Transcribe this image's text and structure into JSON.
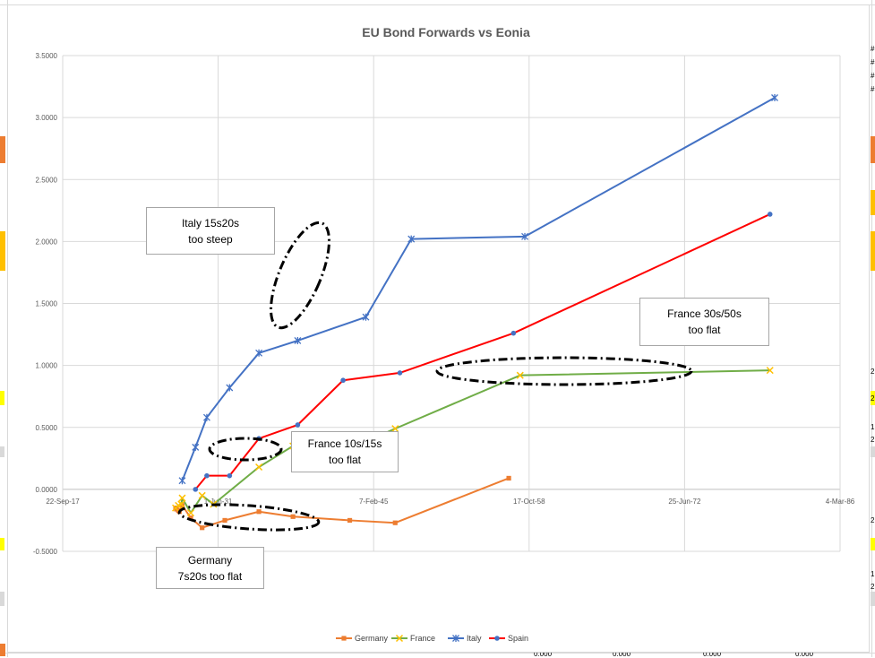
{
  "chart_data": {
    "type": "line",
    "title": "EU Bond Forwards vs Eonia",
    "x_axis": {
      "min": "1917-09-22",
      "max": "1986-03-04",
      "tick_labels": [
        "22-Sep-17",
        "1-Jun-31",
        "7-Feb-45",
        "17-Oct-58",
        "25-Jun-72",
        "4-Mar-86"
      ]
    },
    "y_axis": {
      "min": -0.5,
      "max": 3.5,
      "step": 0.5,
      "tick_labels": [
        "3.5000",
        "3.0000",
        "2.5000",
        "2.0000",
        "1.5000",
        "1.0000",
        "0.5000",
        "0.0000",
        "-0.5000"
      ]
    },
    "gridlines": true,
    "legend_position": "bottom",
    "series": [
      {
        "name": "Germany",
        "color": "#ED7D31",
        "marker": "square",
        "points": [
          [
            "1927-09-01",
            -0.15
          ],
          [
            "1927-10-01",
            -0.16
          ],
          [
            "1927-12-01",
            -0.17
          ],
          [
            "1928-01-01",
            -0.18
          ],
          [
            "1928-04-01",
            -0.13
          ],
          [
            "1929-01-01",
            -0.23
          ],
          [
            "1930-01-01",
            -0.31
          ],
          [
            "1932-01-01",
            -0.25
          ],
          [
            "1935-01-01",
            -0.18
          ],
          [
            "1938-01-01",
            -0.22
          ],
          [
            "1943-01-01",
            -0.25
          ],
          [
            "1947-01-01",
            -0.27
          ],
          [
            "1957-01-01",
            0.09
          ]
        ]
      },
      {
        "name": "France",
        "color": "#70AD47",
        "marker": "x",
        "points": [
          [
            "1927-09-01",
            -0.15
          ],
          [
            "1927-12-01",
            -0.13
          ],
          [
            "1928-03-01",
            -0.12
          ],
          [
            "1928-04-01",
            -0.07
          ],
          [
            "1929-01-01",
            -0.19
          ],
          [
            "1930-01-01",
            -0.05
          ],
          [
            "1931-01-01",
            -0.12
          ],
          [
            "1935-01-01",
            0.18
          ],
          [
            "1938-01-01",
            0.35
          ],
          [
            "1943-01-01",
            0.33
          ],
          [
            "1947-01-01",
            0.49
          ],
          [
            "1958-01-01",
            0.92
          ],
          [
            "1980-01-01",
            0.96
          ]
        ]
      },
      {
        "name": "Italy",
        "color": "#4472C4",
        "marker": "star",
        "points": [
          [
            "1928-04-01",
            0.07
          ],
          [
            "1929-06-01",
            0.34
          ],
          [
            "1930-06-01",
            0.58
          ],
          [
            "1932-06-01",
            0.82
          ],
          [
            "1935-01-01",
            1.1
          ],
          [
            "1938-06-01",
            1.2
          ],
          [
            "1944-06-01",
            1.39
          ],
          [
            "1948-06-01",
            2.02
          ],
          [
            "1958-06-01",
            2.04
          ],
          [
            "1980-06-01",
            3.16
          ]
        ]
      },
      {
        "name": "Spain",
        "color": "#FF0000",
        "marker": "circle",
        "points": [
          [
            "1929-06-01",
            0.0
          ],
          [
            "1930-06-01",
            0.11
          ],
          [
            "1932-06-01",
            0.11
          ],
          [
            "1935-01-01",
            0.41
          ],
          [
            "1938-06-01",
            0.52
          ],
          [
            "1942-06-01",
            0.88
          ],
          [
            "1947-06-01",
            0.94
          ],
          [
            "1957-06-01",
            1.26
          ],
          [
            "1980-01-01",
            2.22
          ]
        ]
      }
    ],
    "annotations": [
      "Italy 15s20s\ntoo steep",
      "France 30s/50s\ntoo flat",
      "France 10s/15s\ntoo flat",
      "Germany\n7s20s too flat"
    ]
  },
  "edge_fragments": {
    "right_top": [
      "#",
      "#",
      "#",
      "#"
    ],
    "right_mid": [
      "2",
      "2",
      "1",
      "2"
    ],
    "right_low": [
      "2",
      "1",
      "2"
    ],
    "bottom": [
      "0.000",
      "0.000",
      "0.000",
      "0.000"
    ]
  }
}
